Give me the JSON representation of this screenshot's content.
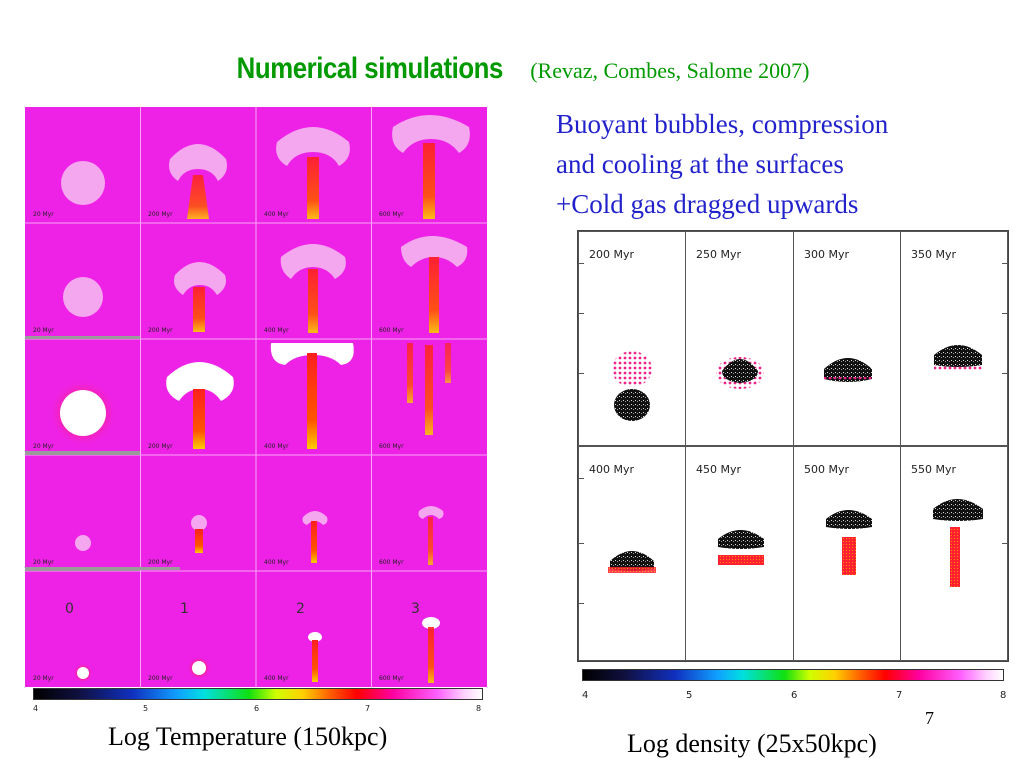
{
  "title": {
    "main": "Numerical simulations",
    "citation": "(Revaz, Combes, Salome 2007)"
  },
  "description": [
    "Buoyant bubbles, compression",
    "and cooling at the surfaces",
    "+Cold gas dragged upwards"
  ],
  "left_figure": {
    "rows": [
      {
        "times": [
          "20 Myr",
          "200 Myr",
          "400 Myr",
          "600 Myr"
        ]
      },
      {
        "times": [
          "20 Myr",
          "200 Myr",
          "400 Myr",
          "600 Myr"
        ]
      },
      {
        "times": [
          "20 Myr",
          "200 Myr",
          "400 Myr",
          "600 Myr"
        ]
      },
      {
        "times": [
          "20 Myr",
          "200 Myr",
          "400 Myr",
          "600 Myr"
        ]
      },
      {
        "times": [
          "20 Myr",
          "200 Myr",
          "400 Myr",
          "600 Myr"
        ],
        "labels": [
          "0",
          "1",
          "2",
          "3"
        ]
      }
    ],
    "colorbar_ticks": [
      "4",
      "5",
      "6",
      "7",
      "8"
    ],
    "caption": "Log Temperature  (150kpc)"
  },
  "right_figure": {
    "panels": [
      {
        "label": "200 Myr"
      },
      {
        "label": "250 Myr"
      },
      {
        "label": "300 Myr"
      },
      {
        "label": "350 Myr"
      },
      {
        "label": "400 Myr"
      },
      {
        "label": "450 Myr"
      },
      {
        "label": "500 Myr"
      },
      {
        "label": "550 Myr"
      }
    ],
    "colorbar_ticks": [
      "4",
      "5",
      "6",
      "7",
      "8"
    ],
    "caption": "Log density  (25x50kpc)"
  },
  "page_number": "7"
}
